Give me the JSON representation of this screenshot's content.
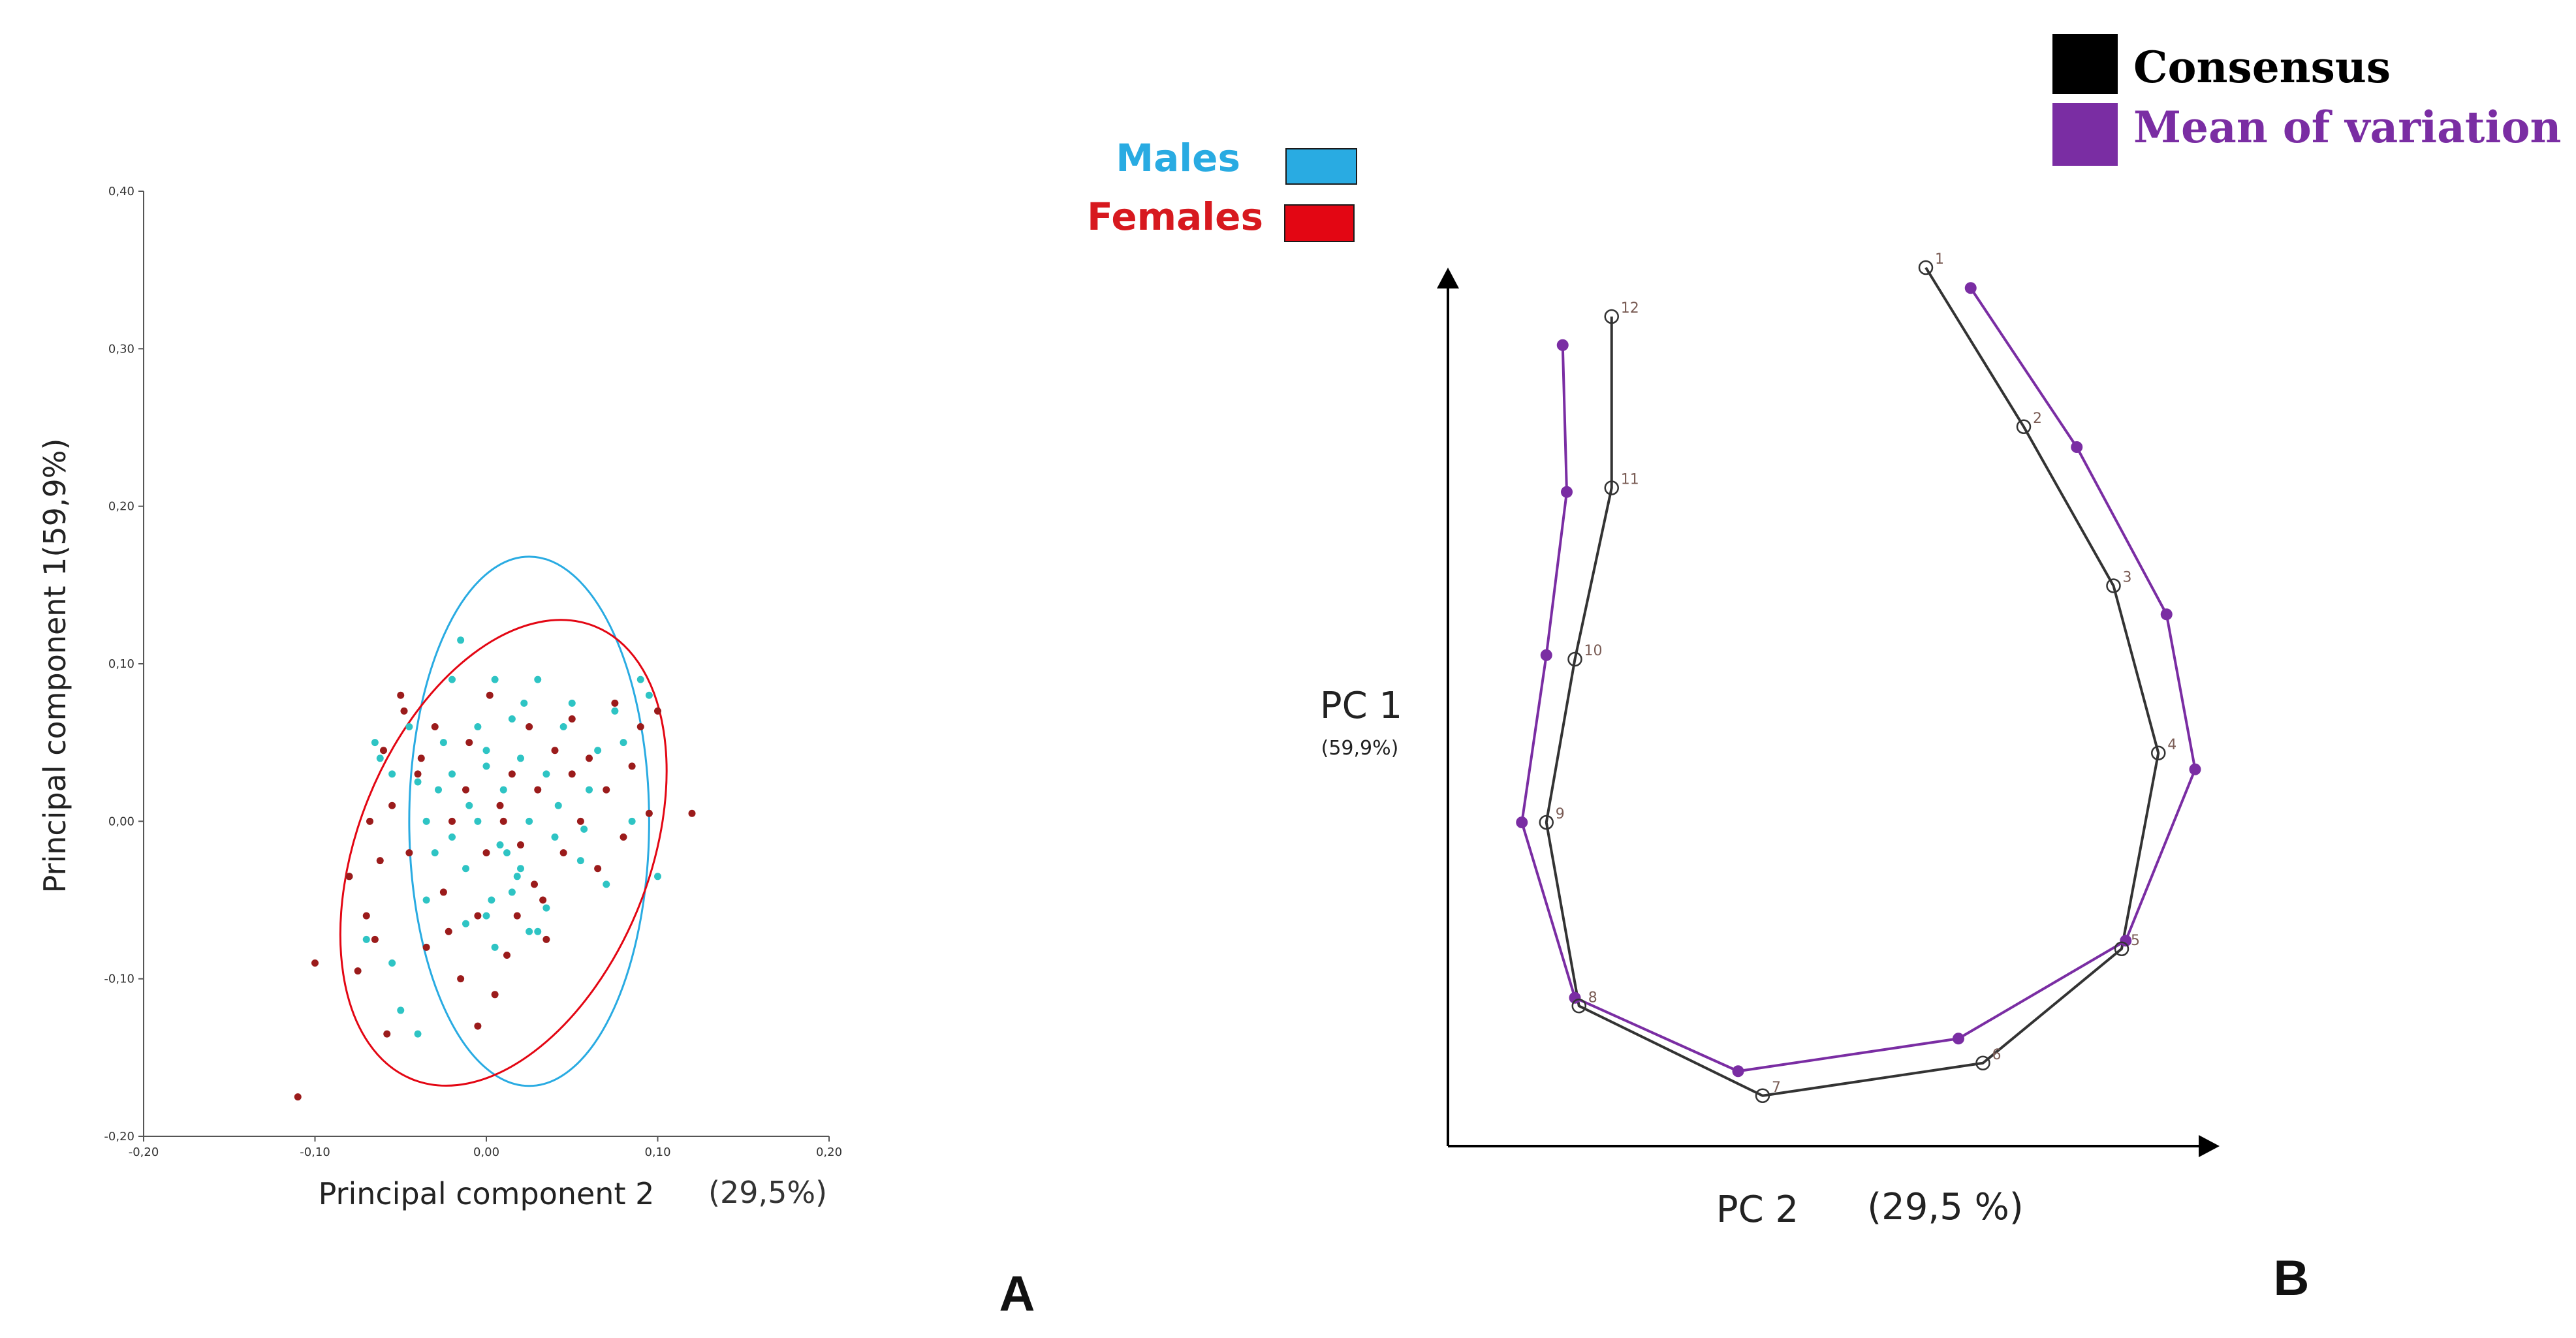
{
  "chart_data": [
    {
      "type": "scatter",
      "panel_label": "A",
      "xlabel": "Principal component 2",
      "xlabel_pct": "(29,5%)",
      "ylabel": "Principal component 1(59,9%)",
      "xlim": [
        -0.2,
        0.2
      ],
      "ylim": [
        -0.2,
        0.4
      ],
      "x_ticks": [
        "-0,20",
        "-0,10",
        "0,00",
        "0,10",
        "0,20"
      ],
      "y_ticks": [
        "-0,20",
        "-0,10",
        "0,00",
        "0,10",
        "0,20",
        "0,30",
        "0,40"
      ],
      "legend": [
        {
          "name": "Males",
          "color": "#29ABE2"
        },
        {
          "name": "Females",
          "color": "#E30613"
        }
      ],
      "series": [
        {
          "name": "Males",
          "point_color": "#2EC4C4",
          "ellipse": {
            "center": [
              0.025,
              0.0
            ],
            "semi_x": 0.07,
            "semi_y": 0.168,
            "color": "#29ABE2"
          },
          "points": [
            [
              -0.065,
              0.05
            ],
            [
              -0.062,
              0.04
            ],
            [
              -0.055,
              0.03
            ],
            [
              -0.045,
              0.06
            ],
            [
              -0.04,
              0.025
            ],
            [
              -0.035,
              0.0
            ],
            [
              -0.03,
              -0.02
            ],
            [
              -0.025,
              0.05
            ],
            [
              -0.02,
              0.09
            ],
            [
              -0.02,
              0.03
            ],
            [
              -0.015,
              0.115
            ],
            [
              -0.012,
              -0.03
            ],
            [
              -0.01,
              0.01
            ],
            [
              -0.005,
              0.06
            ],
            [
              -0.005,
              0.0
            ],
            [
              0.0,
              0.035
            ],
            [
              0.0,
              0.045
            ],
            [
              0.003,
              -0.05
            ],
            [
              0.005,
              0.09
            ],
            [
              0.01,
              0.02
            ],
            [
              0.012,
              -0.02
            ],
            [
              0.015,
              0.065
            ],
            [
              0.02,
              0.04
            ],
            [
              0.02,
              -0.03
            ],
            [
              0.022,
              0.075
            ],
            [
              0.025,
              0.0
            ],
            [
              0.03,
              0.09
            ],
            [
              0.03,
              -0.07
            ],
            [
              0.035,
              0.03
            ],
            [
              0.04,
              -0.01
            ],
            [
              0.045,
              0.06
            ],
            [
              0.05,
              0.075
            ],
            [
              0.055,
              -0.025
            ],
            [
              0.06,
              0.02
            ],
            [
              0.065,
              0.045
            ],
            [
              0.07,
              -0.04
            ],
            [
              0.075,
              0.07
            ],
            [
              0.08,
              0.05
            ],
            [
              0.085,
              0.0
            ],
            [
              0.09,
              0.09
            ],
            [
              0.095,
              0.08
            ],
            [
              0.1,
              -0.035
            ],
            [
              -0.05,
              -0.12
            ],
            [
              -0.04,
              -0.135
            ],
            [
              -0.055,
              -0.09
            ],
            [
              -0.07,
              -0.075
            ],
            [
              -0.08,
              -0.035
            ],
            [
              -0.035,
              -0.05
            ],
            [
              -0.028,
              0.02
            ],
            [
              -0.012,
              -0.065
            ],
            [
              0.005,
              -0.08
            ],
            [
              0.015,
              -0.045
            ],
            [
              0.025,
              -0.07
            ],
            [
              0.035,
              -0.055
            ],
            [
              0.008,
              -0.015
            ],
            [
              0.042,
              0.01
            ],
            [
              0.057,
              -0.005
            ],
            [
              0.018,
              -0.035
            ],
            [
              -0.02,
              -0.01
            ],
            [
              0.0,
              -0.06
            ]
          ]
        },
        {
          "name": "Females",
          "point_color": "#9B1B1B",
          "ellipse": {
            "center": [
              0.01,
              -0.02
            ],
            "semi_x": 0.085,
            "semi_y": 0.155,
            "rotation_deg": 22,
            "color": "#E30613"
          },
          "points": [
            [
              -0.11,
              -0.175
            ],
            [
              -0.1,
              -0.09
            ],
            [
              -0.08,
              -0.035
            ],
            [
              -0.075,
              -0.095
            ],
            [
              -0.07,
              -0.06
            ],
            [
              -0.068,
              0.0
            ],
            [
              -0.065,
              -0.075
            ],
            [
              -0.06,
              0.045
            ],
            [
              -0.058,
              -0.135
            ],
            [
              -0.055,
              0.01
            ],
            [
              -0.05,
              0.08
            ],
            [
              -0.048,
              0.07
            ],
            [
              -0.045,
              -0.02
            ],
            [
              -0.04,
              0.03
            ],
            [
              -0.035,
              -0.08
            ],
            [
              -0.03,
              0.06
            ],
            [
              -0.025,
              -0.045
            ],
            [
              -0.02,
              0.0
            ],
            [
              -0.015,
              -0.1
            ],
            [
              -0.012,
              0.02
            ],
            [
              -0.01,
              0.05
            ],
            [
              -0.005,
              -0.06
            ],
            [
              0.0,
              -0.02
            ],
            [
              0.002,
              0.08
            ],
            [
              0.005,
              -0.11
            ],
            [
              0.01,
              0.0
            ],
            [
              0.012,
              -0.085
            ],
            [
              0.015,
              0.03
            ],
            [
              0.02,
              -0.015
            ],
            [
              0.025,
              0.06
            ],
            [
              0.028,
              -0.04
            ],
            [
              0.03,
              0.02
            ],
            [
              0.035,
              -0.075
            ],
            [
              0.04,
              0.045
            ],
            [
              0.045,
              -0.02
            ],
            [
              0.05,
              0.065
            ],
            [
              0.055,
              0.0
            ],
            [
              0.06,
              0.04
            ],
            [
              0.065,
              -0.03
            ],
            [
              0.07,
              0.02
            ],
            [
              0.075,
              0.075
            ],
            [
              0.08,
              -0.01
            ],
            [
              0.085,
              0.035
            ],
            [
              0.09,
              0.06
            ],
            [
              0.095,
              0.005
            ],
            [
              0.1,
              0.07
            ],
            [
              0.12,
              0.005
            ],
            [
              -0.022,
              -0.07
            ],
            [
              -0.005,
              -0.13
            ],
            [
              0.008,
              0.01
            ],
            [
              0.018,
              -0.06
            ],
            [
              -0.038,
              0.04
            ],
            [
              0.033,
              -0.05
            ],
            [
              0.05,
              0.03
            ],
            [
              -0.062,
              -0.025
            ]
          ]
        }
      ]
    },
    {
      "type": "line",
      "panel_label": "B",
      "xlabel": "PC 2",
      "xlabel_pct": "(29,5 %)",
      "ylabel": "PC 1",
      "ylabel_pct": "(59,9%)",
      "legend": [
        {
          "name": "Consensus",
          "color": "#000000"
        },
        {
          "name": "Mean of variation",
          "color": "#7A2DA3"
        }
      ],
      "landmark_labels": [
        "1",
        "2",
        "3",
        "4",
        "5",
        "6",
        "7",
        "8",
        "9",
        "10",
        "11",
        "12"
      ],
      "series": [
        {
          "name": "Consensus",
          "color": "#333333",
          "points": [
            [
              0.0,
              1.0
            ],
            [
              0.12,
              0.805
            ],
            [
              0.23,
              0.61
            ],
            [
              0.285,
              0.405
            ],
            [
              0.24,
              0.165
            ],
            [
              0.07,
              0.025
            ],
            [
              -0.2,
              -0.015
            ],
            [
              -0.425,
              0.095
            ],
            [
              -0.465,
              0.32
            ],
            [
              -0.43,
              0.52
            ],
            [
              -0.385,
              0.73
            ],
            [
              -0.385,
              0.94
            ]
          ]
        },
        {
          "name": "Mean of variation",
          "color": "#7A2DA3",
          "points": [
            [
              0.055,
              0.975
            ],
            [
              0.185,
              0.78
            ],
            [
              0.295,
              0.575
            ],
            [
              0.33,
              0.385
            ],
            [
              0.245,
              0.175
            ],
            [
              0.04,
              0.055
            ],
            [
              -0.23,
              0.015
            ],
            [
              -0.43,
              0.105
            ],
            [
              -0.495,
              0.32
            ],
            [
              -0.465,
              0.525
            ],
            [
              -0.44,
              0.725
            ],
            [
              -0.445,
              0.905
            ]
          ]
        }
      ]
    }
  ]
}
